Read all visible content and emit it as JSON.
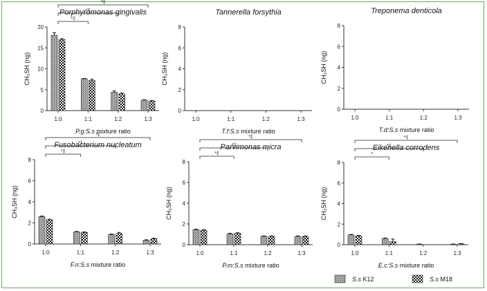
{
  "figure": {
    "border_color": "#6aaa64",
    "legend": [
      {
        "label_species": "S.s",
        "label_strain": "K12",
        "pattern": "dotted-gray"
      },
      {
        "label_species": "S.s",
        "label_strain": "M18",
        "pattern": "checker"
      }
    ]
  },
  "chart_data": [
    {
      "type": "bar",
      "title": "Porphyromonas gingivalis",
      "xlabel_species": "P.g:S.s",
      "xlabel_suffix": " mixture ratio",
      "ylabel": "CH₃SH (ng)",
      "categories": [
        "1:0",
        "1:1",
        "1:2",
        "1:3"
      ],
      "ylim": [
        0,
        20
      ],
      "yticks": [
        0,
        5,
        10,
        15,
        20
      ],
      "series": [
        {
          "name": "S.s K12",
          "values": [
            18.0,
            7.6,
            4.4,
            2.5
          ],
          "errors": [
            0.6,
            0.1,
            0.3,
            0.1
          ]
        },
        {
          "name": "S.s M18",
          "values": [
            17.0,
            7.2,
            4.0,
            2.3
          ],
          "errors": [
            0.2,
            0.3,
            0.2,
            0.1
          ]
        }
      ],
      "significance": [
        {
          "from": "1:0",
          "to": "1:1",
          "label": "*‡"
        },
        {
          "from": "1:0",
          "to": "1:2",
          "label": "*‡"
        },
        {
          "from": "1:0",
          "to": "1:3",
          "label": "*‡"
        }
      ]
    },
    {
      "type": "bar",
      "title": "Tannerella forsythia",
      "xlabel_species": "T.f:S.s",
      "xlabel_suffix": " mixture ratio",
      "ylabel": "CH₃SH (ng)",
      "categories": [
        "1:0",
        "1:1",
        "1:2",
        "1:3"
      ],
      "ylim": [
        0,
        8
      ],
      "yticks": [
        0,
        2,
        4,
        6,
        8
      ],
      "series": [
        {
          "name": "S.s K12",
          "values": [
            0,
            0,
            0,
            0
          ],
          "errors": [
            0,
            0,
            0,
            0
          ]
        },
        {
          "name": "S.s M18",
          "values": [
            0,
            0,
            0,
            0
          ],
          "errors": [
            0,
            0,
            0,
            0
          ]
        }
      ],
      "significance": []
    },
    {
      "type": "bar",
      "title": "Treponema denticola",
      "xlabel_species": "T.d:S.s",
      "xlabel_suffix": " mixture ratio",
      "ylabel": "CH₃SH (ng)",
      "categories": [
        "1:0",
        "1:1",
        "1:2",
        "1:3"
      ],
      "ylim": [
        0,
        8
      ],
      "yticks": [
        0,
        2,
        4,
        6,
        8
      ],
      "series": [
        {
          "name": "S.s K12",
          "values": [
            0,
            0,
            0,
            0
          ],
          "errors": [
            0,
            0,
            0,
            0
          ]
        },
        {
          "name": "S.s M18",
          "values": [
            0,
            0,
            0,
            0
          ],
          "errors": [
            0,
            0,
            0,
            0
          ]
        }
      ],
      "significance": []
    },
    {
      "type": "bar",
      "title": "Fusobacterium nucleatum",
      "xlabel_species": "F.n:S.s",
      "xlabel_suffix": " mixture ratio",
      "ylabel": "CH₃SH (ng)",
      "categories": [
        "1:0",
        "1:1",
        "1:2",
        "1:3"
      ],
      "ylim": [
        0,
        8
      ],
      "yticks": [
        0,
        2,
        4,
        6,
        8
      ],
      "series": [
        {
          "name": "S.s K12",
          "values": [
            2.6,
            1.15,
            0.9,
            0.35
          ],
          "errors": [
            0.05,
            0.05,
            0.05,
            0.05
          ]
        },
        {
          "name": "S.s M18",
          "values": [
            2.3,
            1.1,
            1.0,
            0.5
          ],
          "errors": [
            0.05,
            0.05,
            0.1,
            0.05
          ]
        }
      ],
      "significance": [
        {
          "from": "1:0",
          "to": "1:1",
          "label": "*‡"
        },
        {
          "from": "1:0",
          "to": "1:2",
          "label": "*‡"
        },
        {
          "from": "1:0",
          "to": "1:3",
          "label": "*‡"
        }
      ]
    },
    {
      "type": "bar",
      "title": "Parvimonas micra",
      "xlabel_species": "P.m:S.s",
      "xlabel_suffix": " mixture ratio",
      "ylabel": "CH₃SH (ng)",
      "categories": [
        "1:0",
        "1:1",
        "1:2",
        "1:3"
      ],
      "ylim": [
        0,
        8
      ],
      "yticks": [
        0,
        2,
        4,
        6,
        8
      ],
      "series": [
        {
          "name": "S.s K12",
          "values": [
            1.45,
            1.05,
            0.8,
            0.8
          ],
          "errors": [
            0.05,
            0.05,
            0.05,
            0.05
          ]
        },
        {
          "name": "S.s M18",
          "values": [
            1.4,
            1.1,
            0.8,
            0.8
          ],
          "errors": [
            0.05,
            0.05,
            0.05,
            0.05
          ]
        }
      ],
      "significance": [
        {
          "from": "1:0",
          "to": "1:1",
          "label": "*‡"
        },
        {
          "from": "1:0",
          "to": "1:2",
          "label": "*‡"
        },
        {
          "from": "1:0",
          "to": "1:3",
          "label": "*‡"
        }
      ]
    },
    {
      "type": "bar",
      "title": "Eikenella corrodens",
      "xlabel_species": "E.c:S.s",
      "xlabel_suffix": " mixture ratio",
      "ylabel": "CH₃SH (ng)",
      "categories": [
        "1:0",
        "1:1",
        "1:2",
        "1:3"
      ],
      "ylim": [
        0,
        8
      ],
      "yticks": [
        0,
        2,
        4,
        6,
        8
      ],
      "series": [
        {
          "name": "S.s K12",
          "values": [
            0.95,
            0.6,
            0.05,
            0.05
          ],
          "errors": [
            0.05,
            0.05,
            0.02,
            0.02
          ]
        },
        {
          "name": "S.s M18",
          "values": [
            0.85,
            0.3,
            0.02,
            0.08
          ],
          "errors": [
            0.05,
            0.25,
            0.02,
            0.03
          ]
        }
      ],
      "significance": [
        {
          "from": "1:0",
          "to": "1:1",
          "label": "*"
        },
        {
          "from": "1:0",
          "to": "1:2",
          "label": "*‡"
        },
        {
          "from": "1:0",
          "to": "1:3",
          "label": "*‡"
        }
      ]
    }
  ]
}
